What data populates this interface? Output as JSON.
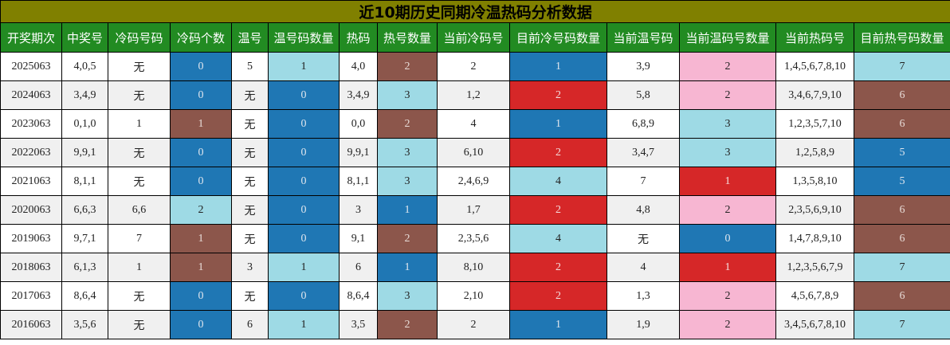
{
  "title": "近10期历史同期冷温热码分析数据",
  "none_label": "无",
  "colors": {
    "title_bg": "#808000",
    "header_bg": "#228b22",
    "dark_blue": "#1f77b4",
    "light_blue": "#9edae5",
    "brown": "#8c564b",
    "red": "#d62728",
    "pink": "#f7b6d2",
    "row_alt": "#f0f0f0"
  },
  "headers": [
    "开奖期次",
    "中奖号",
    "冷码号码",
    "冷码个数",
    "温号",
    "温号码数量",
    "热码",
    "热号数量",
    "当前冷码号",
    "目前冷号码数量",
    "当前温号码",
    "当前温码号数量",
    "当前热码号",
    "目前热号码数量"
  ],
  "rows": [
    {
      "period": "2025063",
      "winning": "4,0,5",
      "cold": "无",
      "cold_count": "0",
      "warm": "5",
      "warm_count": "1",
      "hot": "4,0",
      "hot_count": "2",
      "cur_cold": "2",
      "cur_cold_count": "1",
      "cur_warm": "3,9",
      "cur_warm_count": "2",
      "cur_hot": "1,4,5,6,7,8,10",
      "cur_hot_count": "7",
      "colors": {
        "cold_count": "c-dblue",
        "warm_count": "c-lblue",
        "hot_count": "c-brown",
        "cur_cold_count": "c-dblue",
        "cur_warm_count": "c-pink",
        "cur_hot_count": "c-lblue"
      }
    },
    {
      "period": "2024063",
      "winning": "3,4,9",
      "cold": "无",
      "cold_count": "0",
      "warm": "无",
      "warm_count": "0",
      "hot": "3,4,9",
      "hot_count": "3",
      "cur_cold": "1,2",
      "cur_cold_count": "2",
      "cur_warm": "5,8",
      "cur_warm_count": "2",
      "cur_hot": "3,4,6,7,9,10",
      "cur_hot_count": "6",
      "colors": {
        "cold_count": "c-dblue",
        "warm_count": "c-dblue",
        "hot_count": "c-lblue",
        "cur_cold_count": "c-red",
        "cur_warm_count": "c-pink",
        "cur_hot_count": "c-brown"
      }
    },
    {
      "period": "2023063",
      "winning": "0,1,0",
      "cold": "1",
      "cold_count": "1",
      "warm": "无",
      "warm_count": "0",
      "hot": "0,0",
      "hot_count": "2",
      "cur_cold": "4",
      "cur_cold_count": "1",
      "cur_warm": "6,8,9",
      "cur_warm_count": "3",
      "cur_hot": "1,2,3,5,7,10",
      "cur_hot_count": "6",
      "colors": {
        "cold_count": "c-brown",
        "warm_count": "c-dblue",
        "hot_count": "c-brown",
        "cur_cold_count": "c-dblue",
        "cur_warm_count": "c-lblue",
        "cur_hot_count": "c-brown"
      }
    },
    {
      "period": "2022063",
      "winning": "9,9,1",
      "cold": "无",
      "cold_count": "0",
      "warm": "无",
      "warm_count": "0",
      "hot": "9,9,1",
      "hot_count": "3",
      "cur_cold": "6,10",
      "cur_cold_count": "2",
      "cur_warm": "3,4,7",
      "cur_warm_count": "3",
      "cur_hot": "1,2,5,8,9",
      "cur_hot_count": "5",
      "colors": {
        "cold_count": "c-dblue",
        "warm_count": "c-dblue",
        "hot_count": "c-lblue",
        "cur_cold_count": "c-red",
        "cur_warm_count": "c-lblue",
        "cur_hot_count": "c-dblue"
      }
    },
    {
      "period": "2021063",
      "winning": "8,1,1",
      "cold": "无",
      "cold_count": "0",
      "warm": "无",
      "warm_count": "0",
      "hot": "8,1,1",
      "hot_count": "3",
      "cur_cold": "2,4,6,9",
      "cur_cold_count": "4",
      "cur_warm": "7",
      "cur_warm_count": "1",
      "cur_hot": "1,3,5,8,10",
      "cur_hot_count": "5",
      "colors": {
        "cold_count": "c-dblue",
        "warm_count": "c-dblue",
        "hot_count": "c-lblue",
        "cur_cold_count": "c-lblue",
        "cur_warm_count": "c-red",
        "cur_hot_count": "c-dblue"
      }
    },
    {
      "period": "2020063",
      "winning": "6,6,3",
      "cold": "6,6",
      "cold_count": "2",
      "warm": "无",
      "warm_count": "0",
      "hot": "3",
      "hot_count": "1",
      "cur_cold": "1,7",
      "cur_cold_count": "2",
      "cur_warm": "4,8",
      "cur_warm_count": "2",
      "cur_hot": "2,3,5,6,9,10",
      "cur_hot_count": "6",
      "colors": {
        "cold_count": "c-lblue",
        "warm_count": "c-dblue",
        "hot_count": "c-dblue",
        "cur_cold_count": "c-red",
        "cur_warm_count": "c-pink",
        "cur_hot_count": "c-brown"
      }
    },
    {
      "period": "2019063",
      "winning": "9,7,1",
      "cold": "7",
      "cold_count": "1",
      "warm": "无",
      "warm_count": "0",
      "hot": "9,1",
      "hot_count": "2",
      "cur_cold": "2,3,5,6",
      "cur_cold_count": "4",
      "cur_warm": "无",
      "cur_warm_count": "0",
      "cur_hot": "1,4,7,8,9,10",
      "cur_hot_count": "6",
      "colors": {
        "cold_count": "c-brown",
        "warm_count": "c-dblue",
        "hot_count": "c-brown",
        "cur_cold_count": "c-lblue",
        "cur_warm_count": "c-dblue",
        "cur_hot_count": "c-brown"
      }
    },
    {
      "period": "2018063",
      "winning": "6,1,3",
      "cold": "1",
      "cold_count": "1",
      "warm": "3",
      "warm_count": "1",
      "hot": "6",
      "hot_count": "1",
      "cur_cold": "8,10",
      "cur_cold_count": "2",
      "cur_warm": "4",
      "cur_warm_count": "1",
      "cur_hot": "1,2,3,5,6,7,9",
      "cur_hot_count": "7",
      "colors": {
        "cold_count": "c-brown",
        "warm_count": "c-lblue",
        "hot_count": "c-dblue",
        "cur_cold_count": "c-red",
        "cur_warm_count": "c-red",
        "cur_hot_count": "c-lblue"
      }
    },
    {
      "period": "2017063",
      "winning": "8,6,4",
      "cold": "无",
      "cold_count": "0",
      "warm": "无",
      "warm_count": "0",
      "hot": "8,6,4",
      "hot_count": "3",
      "cur_cold": "2,10",
      "cur_cold_count": "2",
      "cur_warm": "1,3",
      "cur_warm_count": "2",
      "cur_hot": "4,5,6,7,8,9",
      "cur_hot_count": "6",
      "colors": {
        "cold_count": "c-dblue",
        "warm_count": "c-dblue",
        "hot_count": "c-lblue",
        "cur_cold_count": "c-red",
        "cur_warm_count": "c-pink",
        "cur_hot_count": "c-brown"
      }
    },
    {
      "period": "2016063",
      "winning": "3,5,6",
      "cold": "无",
      "cold_count": "0",
      "warm": "6",
      "warm_count": "1",
      "hot": "3,5",
      "hot_count": "2",
      "cur_cold": "2",
      "cur_cold_count": "1",
      "cur_warm": "1,9",
      "cur_warm_count": "2",
      "cur_hot": "3,4,5,6,7,8,10",
      "cur_hot_count": "7",
      "colors": {
        "cold_count": "c-dblue",
        "warm_count": "c-lblue",
        "hot_count": "c-brown",
        "cur_cold_count": "c-dblue",
        "cur_warm_count": "c-pink",
        "cur_hot_count": "c-lblue"
      }
    }
  ]
}
